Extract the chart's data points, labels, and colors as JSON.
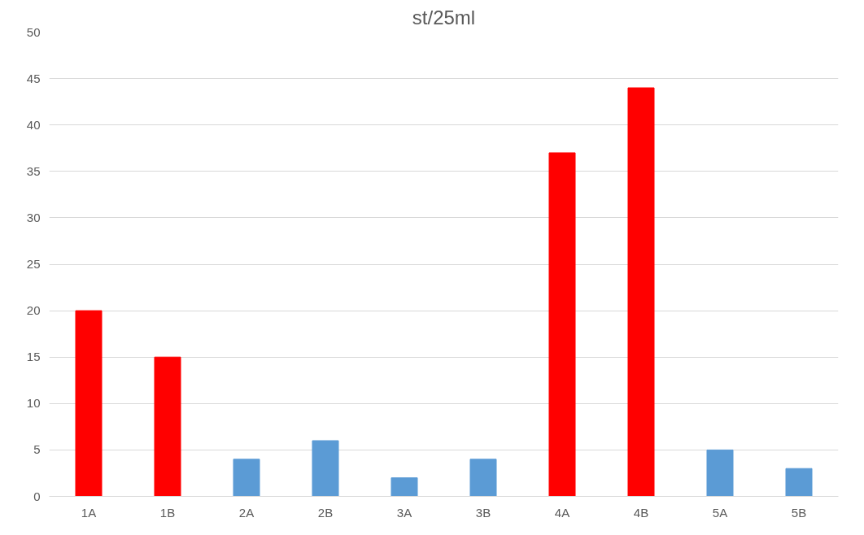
{
  "chart_data": {
    "type": "bar",
    "title": "st/25ml",
    "categories": [
      "1A",
      "1B",
      "2A",
      "2B",
      "3A",
      "3B",
      "4A",
      "4B",
      "5A",
      "5B"
    ],
    "values": [
      20,
      15,
      4,
      6,
      2,
      4,
      37,
      44,
      5,
      3
    ],
    "colors": [
      "#ff0000",
      "#ff0000",
      "#5b9bd5",
      "#5b9bd5",
      "#5b9bd5",
      "#5b9bd5",
      "#ff0000",
      "#ff0000",
      "#5b9bd5",
      "#5b9bd5"
    ],
    "ylim": [
      0,
      50
    ],
    "yticks": [
      0,
      5,
      10,
      15,
      20,
      25,
      30,
      35,
      40,
      45,
      50
    ],
    "grid": "y"
  }
}
